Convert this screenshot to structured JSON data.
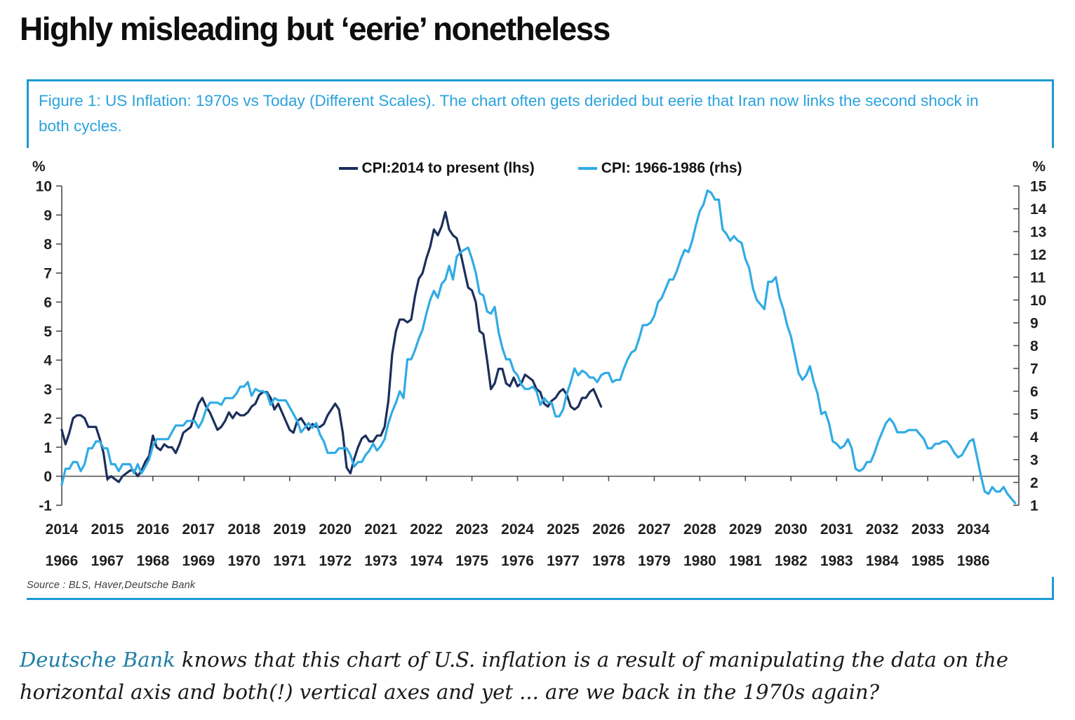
{
  "header": {
    "title": "Highly misleading but ‘eerie’ nonetheless"
  },
  "figure": {
    "caption": "Figure 1: US Inflation: 1970s vs Today (Different Scales). The chart often gets derided but eerie that Iran now links the second shock in both cycles.",
    "source": "Source : BLS, Haver,Deutsche Bank",
    "border_color": "#1e9ad6"
  },
  "legend": {
    "items": [
      {
        "label": "CPI:2014 to present (lhs)",
        "color": "#1b2f5b"
      },
      {
        "label": "CPI: 1966-1986 (rhs)",
        "color": "#30abe5"
      }
    ]
  },
  "axis_units": {
    "left": "%",
    "right": "%"
  },
  "footer": {
    "link": "Deutsche Bank",
    "text_line1": " knows that this chart of U.S. inflation is a result of manipulating the data on the",
    "text_line2": "horizontal axis and both(!) vertical axes and yet ... are we back in the 1970s again?"
  },
  "colors": {
    "navy_series": "#1b2f5b",
    "blue_series": "#30abe5",
    "caption_blue": "#2aa2dc",
    "axis_gray": "#4d4d4d",
    "link_teal": "#1f7ea4"
  },
  "chart_data": {
    "type": "line",
    "title": "US Inflation: 1970s vs Today (Different Scales)",
    "grid": false,
    "legend_position": "top",
    "x_axis": {
      "domain_years": 21,
      "top_row_years": [
        2014,
        2015,
        2016,
        2017,
        2018,
        2019,
        2020,
        2021,
        2022,
        2023,
        2024,
        2025,
        2026,
        2027,
        2028,
        2029,
        2030,
        2031,
        2032,
        2033,
        2034
      ],
      "bottom_row_years": [
        1966,
        1967,
        1968,
        1969,
        1970,
        1971,
        1972,
        1973,
        1974,
        1975,
        1976,
        1977,
        1978,
        1979,
        1980,
        1981,
        1982,
        1983,
        1984,
        1985,
        1986
      ]
    },
    "left_axis": {
      "label": "%",
      "min": -1,
      "max": 10,
      "ticks": [
        10,
        9,
        8,
        7,
        6,
        5,
        4,
        3,
        2,
        1,
        0,
        -1
      ]
    },
    "right_axis": {
      "label": "%",
      "min": 1,
      "max": 15,
      "ticks": [
        15,
        14,
        13,
        12,
        11,
        10,
        9,
        8,
        7,
        6,
        5,
        4,
        3,
        2,
        1
      ]
    },
    "series": [
      {
        "name": "CPI:2014 to present (lhs)",
        "axis": "left",
        "color": "#1b2f5b",
        "start_year": 2014,
        "frequency": "monthly",
        "values": [
          1.6,
          1.1,
          1.5,
          2.0,
          2.1,
          2.1,
          2.0,
          1.7,
          1.7,
          1.7,
          1.3,
          0.8,
          -0.1,
          0.0,
          -0.1,
          -0.2,
          0.0,
          0.1,
          0.2,
          0.2,
          0.0,
          0.2,
          0.5,
          0.7,
          1.4,
          1.0,
          0.9,
          1.1,
          1.0,
          1.0,
          0.8,
          1.1,
          1.5,
          1.6,
          1.7,
          2.1,
          2.5,
          2.7,
          2.4,
          2.2,
          1.9,
          1.6,
          1.7,
          1.9,
          2.2,
          2.0,
          2.2,
          2.1,
          2.1,
          2.2,
          2.4,
          2.5,
          2.8,
          2.9,
          2.9,
          2.7,
          2.3,
          2.5,
          2.2,
          1.9,
          1.6,
          1.5,
          1.9,
          2.0,
          1.8,
          1.6,
          1.8,
          1.7,
          1.7,
          1.8,
          2.1,
          2.3,
          2.5,
          2.3,
          1.5,
          0.3,
          0.1,
          0.6,
          1.0,
          1.3,
          1.4,
          1.2,
          1.2,
          1.4,
          1.4,
          1.7,
          2.6,
          4.2,
          5.0,
          5.4,
          5.4,
          5.3,
          5.4,
          6.2,
          6.8,
          7.0,
          7.5,
          7.9,
          8.5,
          8.3,
          8.6,
          9.1,
          8.5,
          8.3,
          8.2,
          7.7,
          7.1,
          6.5,
          6.4,
          6.0,
          5.0,
          4.9,
          4.0,
          3.0,
          3.2,
          3.7,
          3.7,
          3.2,
          3.1,
          3.4,
          3.1,
          3.2,
          3.5,
          3.4,
          3.3,
          3.0,
          2.9,
          2.5,
          2.4,
          2.6,
          2.7,
          2.9,
          3.0,
          2.8,
          2.4,
          2.3,
          2.4,
          2.7,
          2.7,
          2.9,
          3.0,
          2.7,
          2.4
        ]
      },
      {
        "name": "CPI: 1966-1986 (rhs)",
        "axis": "right",
        "color": "#30abe5",
        "start_year": 1966,
        "frequency": "monthly",
        "values": [
          1.9,
          2.6,
          2.6,
          2.9,
          2.9,
          2.5,
          2.8,
          3.5,
          3.5,
          3.8,
          3.8,
          3.5,
          3.5,
          2.8,
          2.8,
          2.5,
          2.8,
          2.8,
          2.8,
          2.4,
          2.8,
          2.4,
          2.7,
          3.0,
          3.6,
          3.9,
          3.9,
          3.9,
          3.9,
          4.2,
          4.5,
          4.5,
          4.5,
          4.7,
          4.7,
          4.7,
          4.4,
          4.7,
          5.2,
          5.5,
          5.5,
          5.5,
          5.4,
          5.7,
          5.7,
          5.7,
          5.9,
          6.2,
          6.2,
          6.4,
          5.8,
          6.1,
          6.0,
          6.0,
          5.9,
          5.4,
          5.7,
          5.6,
          5.6,
          5.6,
          5.3,
          5.0,
          4.7,
          4.2,
          4.4,
          4.6,
          4.4,
          4.6,
          4.1,
          3.8,
          3.3,
          3.3,
          3.3,
          3.5,
          3.5,
          3.5,
          3.2,
          2.7,
          2.9,
          2.9,
          3.2,
          3.4,
          3.7,
          3.4,
          3.6,
          3.9,
          4.6,
          5.1,
          5.5,
          6.0,
          5.7,
          7.4,
          7.4,
          7.8,
          8.3,
          8.7,
          9.4,
          10.0,
          10.4,
          10.1,
          10.7,
          10.9,
          11.5,
          10.9,
          11.9,
          12.1,
          12.2,
          12.3,
          11.8,
          11.2,
          10.3,
          10.2,
          9.5,
          9.4,
          9.7,
          8.6,
          7.9,
          7.4,
          7.4,
          6.9,
          6.7,
          6.3,
          6.1,
          6.1,
          6.2,
          6.0,
          5.4,
          5.7,
          5.5,
          5.5,
          4.9,
          4.9,
          5.2,
          5.9,
          6.4,
          7.0,
          6.7,
          6.9,
          6.8,
          6.6,
          6.6,
          6.4,
          6.7,
          6.8,
          6.8,
          6.4,
          6.5,
          6.5,
          7.0,
          7.4,
          7.7,
          7.8,
          8.3,
          8.9,
          8.9,
          9.0,
          9.3,
          9.9,
          10.1,
          10.5,
          10.9,
          10.9,
          11.3,
          11.8,
          12.2,
          12.1,
          12.6,
          13.3,
          13.9,
          14.2,
          14.8,
          14.7,
          14.4,
          14.4,
          13.1,
          12.9,
          12.6,
          12.8,
          12.6,
          12.5,
          11.8,
          11.4,
          10.5,
          10.0,
          9.8,
          9.6,
          10.8,
          10.8,
          11.0,
          10.1,
          9.6,
          8.9,
          8.4,
          7.6,
          6.8,
          6.5,
          6.7,
          7.1,
          6.4,
          5.9,
          5.0,
          5.1,
          4.6,
          3.8,
          3.7,
          3.5,
          3.6,
          3.9,
          3.5,
          2.6,
          2.5,
          2.6,
          2.9,
          2.9,
          3.3,
          3.8,
          4.2,
          4.6,
          4.8,
          4.6,
          4.2,
          4.2,
          4.2,
          4.3,
          4.3,
          4.3,
          4.1,
          3.9,
          3.5,
          3.5,
          3.7,
          3.7,
          3.8,
          3.8,
          3.6,
          3.3,
          3.1,
          3.2,
          3.5,
          3.8,
          3.9,
          3.1,
          2.3,
          1.6,
          1.5,
          1.8,
          1.6,
          1.6,
          1.8,
          1.5,
          1.3,
          1.1
        ]
      }
    ]
  }
}
